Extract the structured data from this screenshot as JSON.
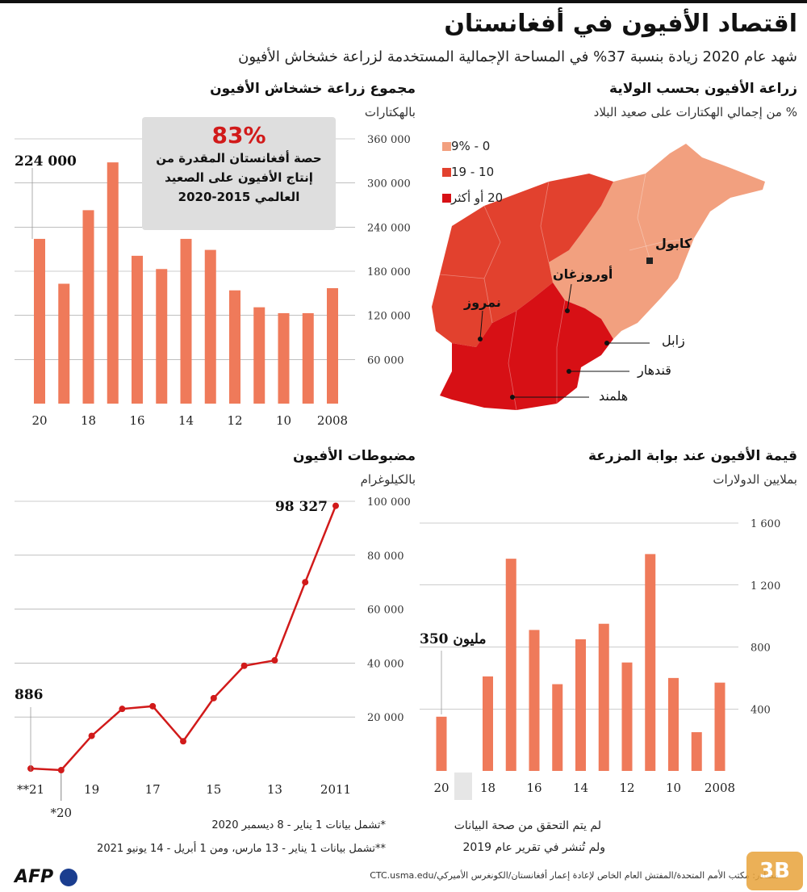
{
  "title": "اقتصاد الأفيون في أفغانستان",
  "subtitle": "شهد عام 2020 زيادة بنسبة 37% في المساحة الإجمالية المستخدمة لزراعة خشخاش الأفيون",
  "panels": {
    "cultivation": {
      "title": "مجموع زراعة خشخاش الأفيون",
      "unit": "بالهكتارات"
    },
    "provinces": {
      "title": "زراعة الأفيون بحسب الولاية",
      "unit": "% من إجمالي الهكتارات على صعيد البلاد"
    },
    "seizures": {
      "title": "مضبوطات الأفيون",
      "unit": "بالكيلوغرام"
    },
    "farmgate": {
      "title": "قيمة الأفيون عند بوابة المزرعة",
      "unit": "بملايين الدولارات"
    }
  },
  "callout": {
    "percent": "83%",
    "text_line1": "حصة أفغانستان المقدرة من",
    "text_line2": "إنتاج الأفيون على الصعيد",
    "text_line3": "العالمي 2015-2020"
  },
  "legend": {
    "items": [
      {
        "label": "0 - 9%",
        "color": "#f2a07f"
      },
      {
        "label": "10 - 19",
        "color": "#e2412e"
      },
      {
        "label": "20 أو أكثر",
        "color": "#d71015"
      }
    ]
  },
  "map_labels": {
    "kabul": "كابول",
    "uruzgan": "أوروزغان",
    "nimroz": "نمروز",
    "zabul": "زابل",
    "kandahar": "قندهار",
    "helmand": "هلمند"
  },
  "notes": {
    "no_data_line1": "لم يتم التحقق من صحة البيانات",
    "no_data_line2": "ولم تُنشر في تقرير عام 2019",
    "foot1": "*تشمل بيانات 1 يناير - 8 ديسمبر 2020",
    "foot2": "**تشمل بيانات 1 يناير - 13 مارس، ومن 1 أبريل - 14 يونيو 2021",
    "source": "مصادر: مكتب الأمم المتحدة/المفتش العام الخاص لإعادة إعمار أفغانستان/الكونغرس الأميركي/CTC.usma.edu",
    "afp": "AFP"
  },
  "colors": {
    "bar": "#ef7a5a",
    "line": "#d11a1a",
    "accent": "#d11a1a"
  },
  "chart_data": [
    {
      "type": "bar",
      "title": "مجموع زراعة خشخاش الأفيون",
      "ylabel": "بالهكتارات",
      "categories": [
        "2008",
        "2009",
        "2010",
        "2011",
        "2012",
        "2013",
        "2014",
        "2015",
        "2016",
        "2017",
        "2018",
        "2019",
        "2020"
      ],
      "x_tick_labels": [
        "2008",
        "",
        "10",
        "",
        "12",
        "",
        "14",
        "",
        "16",
        "",
        "18",
        "",
        "20"
      ],
      "values": [
        157000,
        123000,
        123000,
        131000,
        154000,
        209000,
        224000,
        183000,
        201000,
        328000,
        263000,
        163000,
        224000
      ],
      "ylim": [
        0,
        360000
      ],
      "yticks": [
        "60 000",
        "120 000",
        "180 000",
        "240 000",
        "300 000",
        "360 000"
      ],
      "ytick_values": [
        60000,
        120000,
        180000,
        240000,
        300000,
        360000
      ],
      "annotation": "224 000",
      "grid": true
    },
    {
      "type": "line",
      "title": "مضبوطات الأفيون",
      "ylabel": "بالكيلوغرام",
      "x": [
        "2011",
        "2012",
        "2013",
        "2014",
        "2015",
        "2016",
        "2017",
        "2018",
        "2019",
        "2020*",
        "2021**"
      ],
      "x_tick_labels": [
        "2011",
        "",
        "13",
        "",
        "15",
        "",
        "17",
        "",
        "19",
        "*20",
        "**21"
      ],
      "values": [
        98327,
        70000,
        41000,
        39000,
        27000,
        11000,
        24000,
        23000,
        13000,
        300,
        886
      ],
      "ylim": [
        0,
        100000
      ],
      "yticks": [
        "20 000",
        "40 000",
        "60 000",
        "80 000",
        "100 000"
      ],
      "ytick_values": [
        20000,
        40000,
        60000,
        80000,
        100000
      ],
      "annotations": [
        "98 327",
        "886"
      ],
      "grid": true
    },
    {
      "type": "bar",
      "title": "قيمة الأفيون عند بوابة المزرعة",
      "ylabel": "بملايين الدولارات",
      "categories": [
        "2008",
        "2009",
        "2010",
        "2011",
        "2012",
        "2013",
        "2014",
        "2015",
        "2016",
        "2017",
        "2018",
        "2019",
        "2020"
      ],
      "x_tick_labels": [
        "2008",
        "",
        "10",
        "",
        "12",
        "",
        "14",
        "",
        "16",
        "",
        "18",
        "",
        "20"
      ],
      "values": [
        570,
        250,
        600,
        1400,
        700,
        950,
        850,
        560,
        910,
        1370,
        610,
        null,
        350
      ],
      "ylim": [
        0,
        1600
      ],
      "yticks": [
        "400",
        "800",
        "1 200",
        "1 600"
      ],
      "ytick_values": [
        400,
        800,
        1200,
        1600
      ],
      "annotation": "350 مليون",
      "grid": true
    }
  ]
}
